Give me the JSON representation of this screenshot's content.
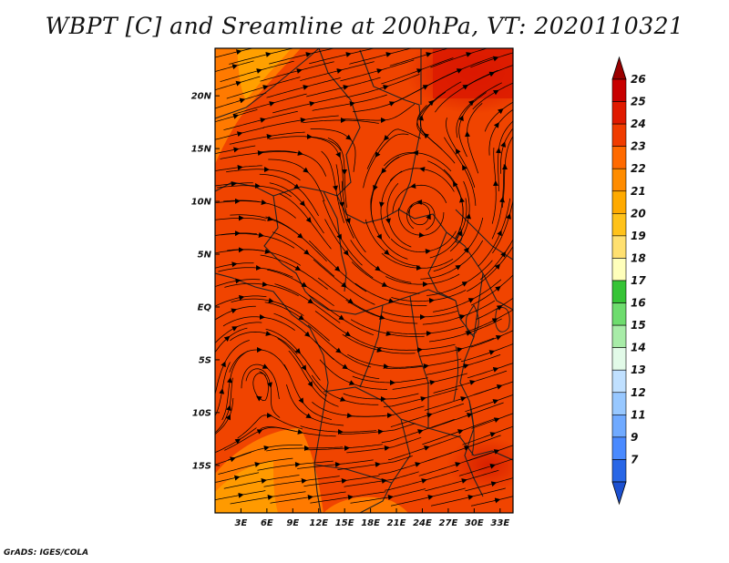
{
  "title": "WBPT [C] and Sreamline at 200hPa, VT: 2020110321",
  "credit": "GrADS: IGES/COLA",
  "map": {
    "region": "Central-Eastern Africa",
    "lon_ticks": [
      "3E",
      "6E",
      "9E",
      "12E",
      "15E",
      "18E",
      "21E",
      "24E",
      "27E",
      "30E",
      "33E"
    ],
    "lat_ticks": [
      "20N",
      "15N",
      "10N",
      "5N",
      "EQ",
      "5S",
      "10S",
      "15S"
    ],
    "lon_range": [
      0,
      34.5
    ],
    "lat_range": [
      -19.5,
      24.5
    ],
    "field": "WBPT",
    "field_units": "C",
    "dominant_level": "23-24",
    "streamline_color": "#000000"
  },
  "colorbar": {
    "labels": [
      "26",
      "25",
      "24",
      "23",
      "22",
      "21",
      "20",
      "19",
      "18",
      "17",
      "16",
      "15",
      "14",
      "13",
      "12",
      "11",
      "9",
      "7"
    ],
    "colors": [
      "#c80000",
      "#e01a00",
      "#f03c00",
      "#ff6a00",
      "#ff8c00",
      "#ffaa00",
      "#ffc21a",
      "#ffe070",
      "#ffffbb",
      "#36c436",
      "#6edc6e",
      "#a8eca8",
      "#e2fae8",
      "#c0e0ff",
      "#98c8ff",
      "#70aaff",
      "#4a8aff",
      "#2866e6"
    ],
    "arrow_top_color": "#9a0000",
    "arrow_bottom_color": "#1c50d0"
  }
}
